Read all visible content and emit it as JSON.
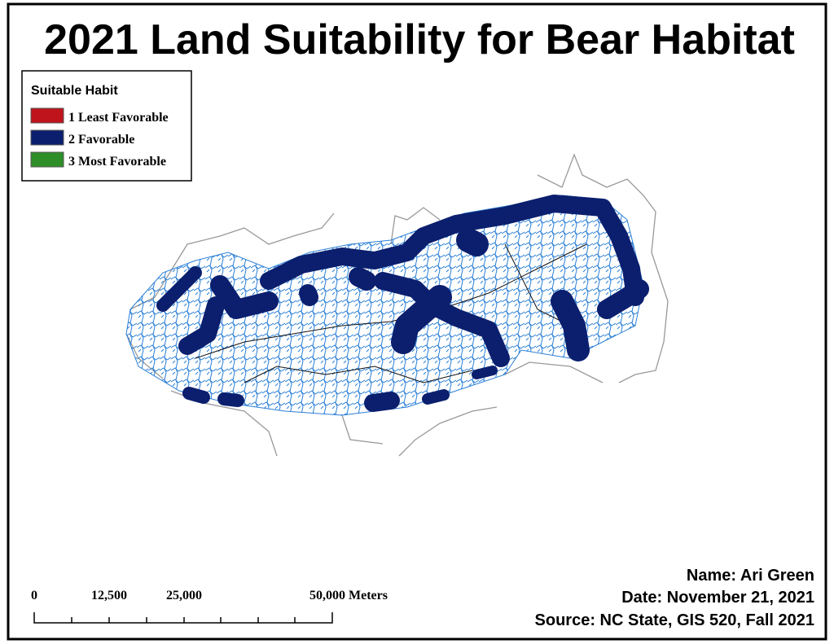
{
  "title": "2021 Land Suitability for Bear Habitat",
  "legend": {
    "title": "Suitable Habit",
    "items": [
      {
        "label": "1 Least Favorable",
        "color": "#c0141c"
      },
      {
        "label": "2 Favorable",
        "color": "#0b1f6e"
      },
      {
        "label": "3 Most Favorable",
        "color": "#2e8f28"
      }
    ]
  },
  "scale_bar": {
    "labels": [
      "0",
      "12,500",
      "25,000",
      "50,000 Meters"
    ]
  },
  "credits": [
    "Name: Ari Green",
    "Date: November 21, 2021",
    "Source: NC State, GIS 520, Fall 2021"
  ]
}
